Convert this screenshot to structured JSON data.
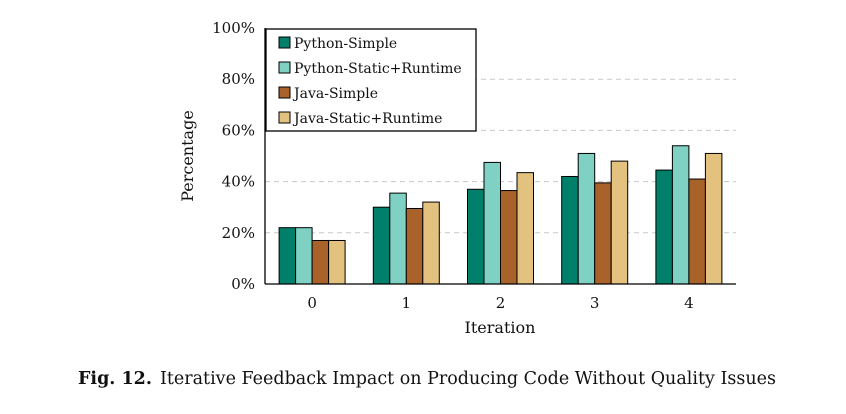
{
  "chart_data": {
    "type": "bar",
    "categories": [
      "0",
      "1",
      "2",
      "3",
      "4"
    ],
    "series": [
      {
        "name": "Python-Simple",
        "color": "#00806b",
        "values": [
          22,
          30,
          37,
          42,
          44.5
        ]
      },
      {
        "name": "Python-Static+Runtime",
        "color": "#7fd1c3",
        "values": [
          22,
          35.5,
          47.5,
          51,
          54
        ]
      },
      {
        "name": "Java-Simple",
        "color": "#a9622a",
        "values": [
          17,
          29.5,
          36.5,
          39.5,
          41
        ]
      },
      {
        "name": "Java-Static+Runtime",
        "color": "#e3c27f",
        "values": [
          17,
          32,
          43.5,
          48,
          51
        ]
      }
    ],
    "xlabel": "Iteration",
    "ylabel": "Percentage",
    "ylim": [
      0,
      100
    ],
    "yticks": [
      "0%",
      "20%",
      "40%",
      "60%",
      "80%",
      "100%"
    ],
    "grid": "horizontal dashed",
    "legend_position": "top-left"
  },
  "caption": {
    "label": "Fig. 12.",
    "text": "Iterative Feedback Impact on Producing Code Without Quality Issues"
  }
}
